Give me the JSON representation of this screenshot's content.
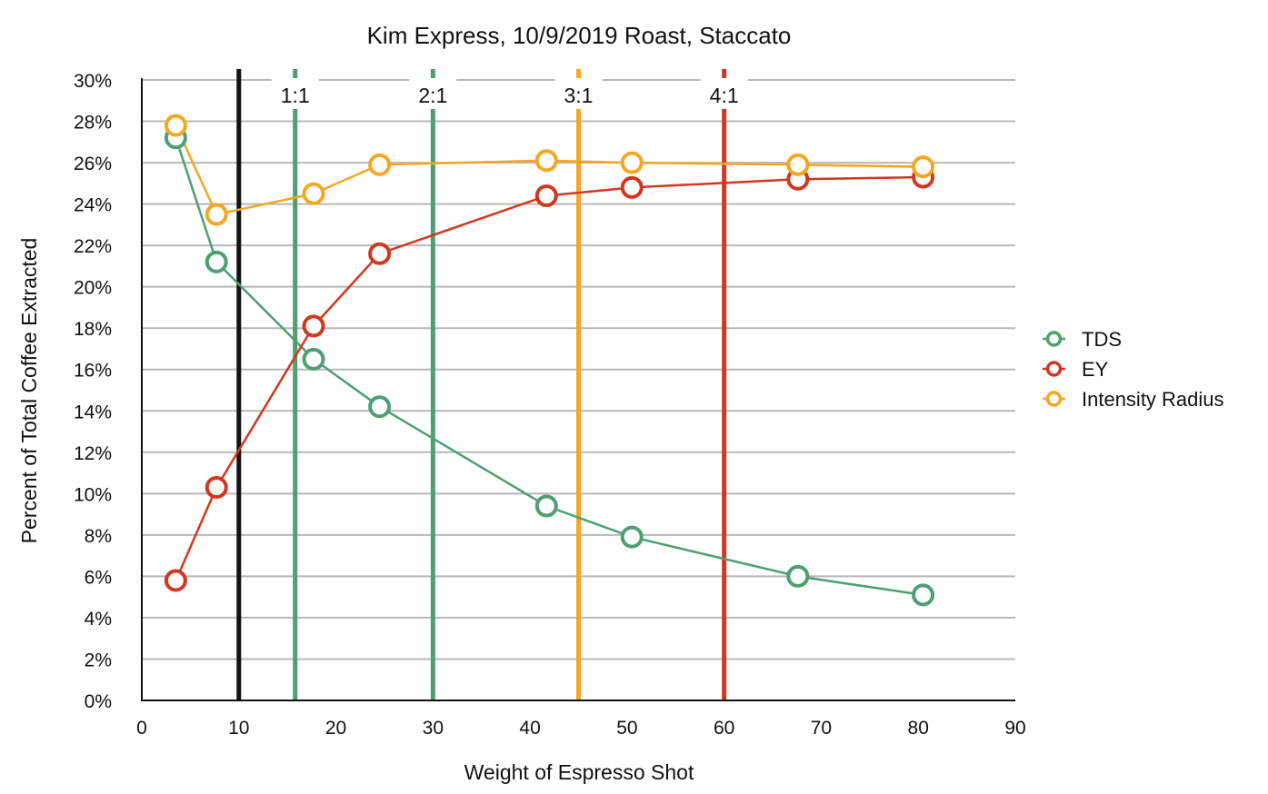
{
  "chart_data": {
    "type": "line",
    "title": "Kim Express, 10/9/2019 Roast, Staccato",
    "xlabel": "Weight of Espresso Shot",
    "ylabel": "Percent of Total Coffee Extracted",
    "xlim": [
      0,
      90
    ],
    "ylim": [
      0,
      30
    ],
    "x_ticks": [
      "0",
      "10",
      "20",
      "30",
      "40",
      "50",
      "60",
      "70",
      "80",
      "90"
    ],
    "y_ticks": [
      "0%",
      "2%",
      "4%",
      "6%",
      "8%",
      "10%",
      "12%",
      "14%",
      "16%",
      "18%",
      "20%",
      "22%",
      "24%",
      "26%",
      "28%",
      "30%"
    ],
    "grid": "horizontal",
    "legend_position": "right",
    "series": [
      {
        "name": "TDS",
        "color": "#4e9f74",
        "points": [
          [
            3.5,
            27.2
          ],
          [
            7.7,
            21.2
          ],
          [
            17.7,
            16.5
          ],
          [
            24.5,
            14.2
          ],
          [
            41.7,
            9.4
          ],
          [
            50.5,
            7.9
          ],
          [
            67.6,
            6.0
          ],
          [
            80.5,
            5.1
          ]
        ]
      },
      {
        "name": "EY",
        "color": "#d2371f",
        "points": [
          [
            3.5,
            5.8
          ],
          [
            7.7,
            10.3
          ],
          [
            17.7,
            18.1
          ],
          [
            24.5,
            21.6
          ],
          [
            41.7,
            24.4
          ],
          [
            50.5,
            24.8
          ],
          [
            67.6,
            25.2
          ],
          [
            80.5,
            25.3
          ]
        ]
      },
      {
        "name": "Intensity Radius",
        "color": "#f3a723",
        "points": [
          [
            3.5,
            27.8
          ],
          [
            7.7,
            23.5
          ],
          [
            17.7,
            24.5
          ],
          [
            24.5,
            25.9
          ],
          [
            41.7,
            26.1
          ],
          [
            50.5,
            26.0
          ],
          [
            67.6,
            25.9
          ],
          [
            80.5,
            25.8
          ]
        ]
      }
    ],
    "reference_lines": [
      {
        "label": "",
        "x": 10,
        "color": "#111111"
      },
      {
        "label": "1:1",
        "x": 15.8,
        "color": "#4e9f74"
      },
      {
        "label": "2:1",
        "x": 30,
        "color": "#4e9f74"
      },
      {
        "label": "3:1",
        "x": 45,
        "color": "#f3a723"
      },
      {
        "label": "4:1",
        "x": 60,
        "color": "#d2371f"
      }
    ]
  }
}
